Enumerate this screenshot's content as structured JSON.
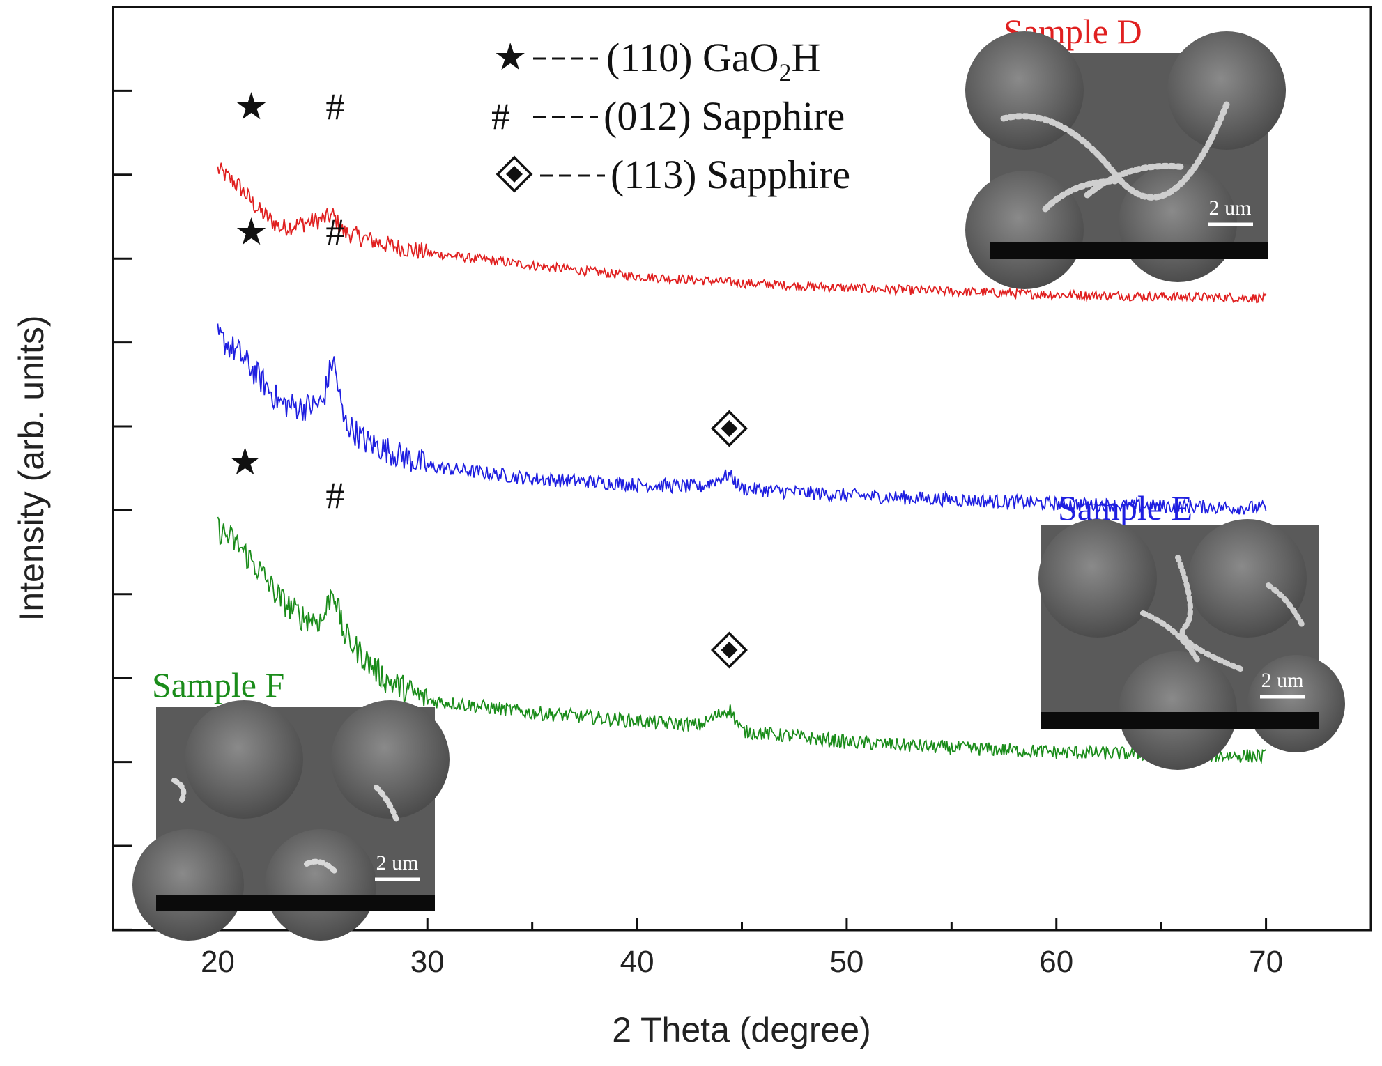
{
  "chart_data": {
    "type": "line",
    "xlabel": "2 Theta (degree)",
    "ylabel": "Intensity (arb. units)",
    "xlim": [
      15,
      75
    ],
    "xticks": [
      20,
      30,
      40,
      50,
      60,
      70
    ],
    "y_tick_labels_shown": false,
    "series": [
      {
        "name": "Sample D",
        "color": "#e02020",
        "points": [
          [
            20,
            9.1
          ],
          [
            21,
            8.9
          ],
          [
            22,
            8.6
          ],
          [
            23,
            8.4
          ],
          [
            24,
            8.45
          ],
          [
            25,
            8.5
          ],
          [
            25.5,
            8.55
          ],
          [
            26,
            8.35
          ],
          [
            28,
            8.2
          ],
          [
            30,
            8.1
          ],
          [
            35,
            7.95
          ],
          [
            40,
            7.82
          ],
          [
            45,
            7.74
          ],
          [
            50,
            7.68
          ],
          [
            55,
            7.64
          ],
          [
            60,
            7.6
          ],
          [
            65,
            7.58
          ],
          [
            70,
            7.56
          ]
        ]
      },
      {
        "name": "Sample E",
        "color": "#1f1fe0",
        "points": [
          [
            20,
            7.1
          ],
          [
            21,
            6.9
          ],
          [
            22,
            6.6
          ],
          [
            23,
            6.3
          ],
          [
            24,
            6.25
          ],
          [
            25,
            6.3
          ],
          [
            25.5,
            6.85
          ],
          [
            26,
            6.1
          ],
          [
            27,
            5.85
          ],
          [
            28,
            5.75
          ],
          [
            30,
            5.55
          ],
          [
            35,
            5.4
          ],
          [
            40,
            5.33
          ],
          [
            43,
            5.3
          ],
          [
            44.4,
            5.45
          ],
          [
            45,
            5.28
          ],
          [
            50,
            5.2
          ],
          [
            55,
            5.15
          ],
          [
            60,
            5.1
          ],
          [
            65,
            5.07
          ],
          [
            70,
            5.05
          ]
        ]
      },
      {
        "name": "Sample F",
        "color": "#1a8c1a",
        "points": [
          [
            20,
            4.8
          ],
          [
            21,
            4.6
          ],
          [
            22,
            4.3
          ],
          [
            23,
            3.95
          ],
          [
            24,
            3.75
          ],
          [
            25,
            3.7
          ],
          [
            25.5,
            4.1
          ],
          [
            26,
            3.55
          ],
          [
            27,
            3.25
          ],
          [
            28,
            3.0
          ],
          [
            30,
            2.75
          ],
          [
            35,
            2.6
          ],
          [
            40,
            2.5
          ],
          [
            43,
            2.45
          ],
          [
            44.4,
            2.65
          ],
          [
            45,
            2.38
          ],
          [
            50,
            2.25
          ],
          [
            55,
            2.18
          ],
          [
            60,
            2.13
          ],
          [
            65,
            2.1
          ],
          [
            70,
            2.08
          ]
        ]
      }
    ],
    "peak_markers": [
      {
        "series": "Sample D",
        "symbol": "★",
        "x": 21.6,
        "y": 9.85
      },
      {
        "series": "Sample D",
        "symbol": "#",
        "x": 25.6,
        "y": 9.85
      },
      {
        "series": "Sample E",
        "symbol": "★",
        "x": 21.6,
        "y": 8.35
      },
      {
        "series": "Sample E",
        "symbol": "#",
        "x": 25.6,
        "y": 8.35
      },
      {
        "series": "Sample E",
        "symbol": "◆",
        "x": 44.4,
        "y": 6.0
      },
      {
        "series": "Sample F",
        "symbol": "★",
        "x": 21.3,
        "y": 5.6
      },
      {
        "series": "Sample F",
        "symbol": "#",
        "x": 25.6,
        "y": 5.2
      },
      {
        "series": "Sample F",
        "symbol": "◆",
        "x": 44.4,
        "y": 3.35
      }
    ],
    "legend": {
      "placement": "top-center",
      "entries": [
        {
          "symbol": "★",
          "label": "(110) GaO",
          "subscript": "2",
          "suffix": "H"
        },
        {
          "symbol": "#",
          "label": "(012) Sapphire"
        },
        {
          "symbol": "◆",
          "label": "(113) Sapphire"
        }
      ]
    },
    "insets": [
      {
        "name": "Sample D",
        "placement": "top-right",
        "scale_bar": "2 um",
        "color": "#e02020"
      },
      {
        "name": "Sample E",
        "placement": "right-middle",
        "scale_bar": "2 um",
        "color": "#1f1fe0"
      },
      {
        "name": "Sample F",
        "placement": "bottom-left",
        "scale_bar": "2 um",
        "color": "#1a8c1a"
      }
    ]
  }
}
